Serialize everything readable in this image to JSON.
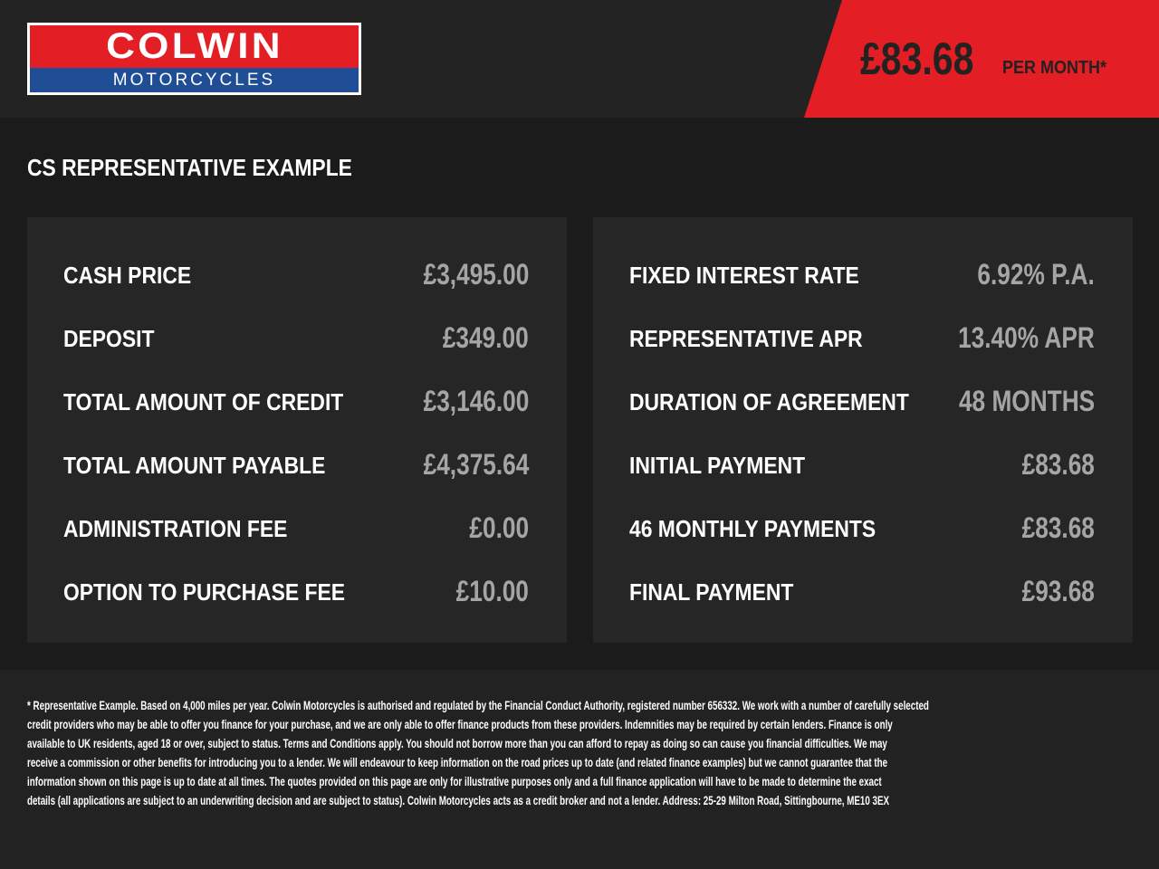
{
  "brand": {
    "name": "COLWIN",
    "sub": "MOTORCYCLES",
    "colors": {
      "red": "#e31e24",
      "blue": "#1f4e96"
    }
  },
  "header": {
    "price": "£83.68",
    "per_month": "PER MONTH*"
  },
  "title": "CS REPRESENTATIVE EXAMPLE",
  "left": [
    {
      "label": "CASH PRICE",
      "value": "£3,495.00"
    },
    {
      "label": "DEPOSIT",
      "value": "£349.00"
    },
    {
      "label": "TOTAL AMOUNT OF CREDIT",
      "value": "£3,146.00"
    },
    {
      "label": "TOTAL AMOUNT PAYABLE",
      "value": "£4,375.64"
    },
    {
      "label": "ADMINISTRATION FEE",
      "value": "£0.00"
    },
    {
      "label": "OPTION TO PURCHASE FEE",
      "value": "£10.00"
    }
  ],
  "right": [
    {
      "label": "FIXED INTEREST RATE",
      "value": "6.92% P.A."
    },
    {
      "label": "REPRESENTATIVE APR",
      "value": "13.40% APR"
    },
    {
      "label": "DURATION OF AGREEMENT",
      "value": "48 MONTHS"
    },
    {
      "label": "INITIAL PAYMENT",
      "value": "£83.68"
    },
    {
      "label": "46 MONTHLY PAYMENTS",
      "value": "£83.68"
    },
    {
      "label": "FINAL PAYMENT",
      "value": "£93.68"
    }
  ],
  "disclaimer": [
    "* Representative Example. Based on 4,000 miles per year. Colwin Motorcycles is authorised and regulated by the Financial Conduct Authority, registered number 656332. We work with a number of carefully selected",
    "credit providers who may be able to offer you finance for your purchase, and we are only able to offer finance products from these providers. Indemnities may be required by certain lenders. Finance is only",
    "available to UK residents, aged 18 or over, subject to status. Terms and Conditions apply. You should not borrow more than you can afford to repay as doing so can cause you financial difficulties. We may",
    "receive a commission or other benefits for introducing you to a lender. We will endeavour to keep information on the road prices up to date (and related finance examples) but we cannot guarantee that the",
    "information shown on this page is up to date at all times. The quotes provided on this page are only for illustrative purposes only and a full finance application will have to be made to determine the exact",
    "details (all applications are subject to an underwriting decision and are subject to status). Colwin Motorcycles acts as a credit broker and not a lender. Address:  25-29 Milton Road, Sittingbourne, ME10 3EX"
  ]
}
